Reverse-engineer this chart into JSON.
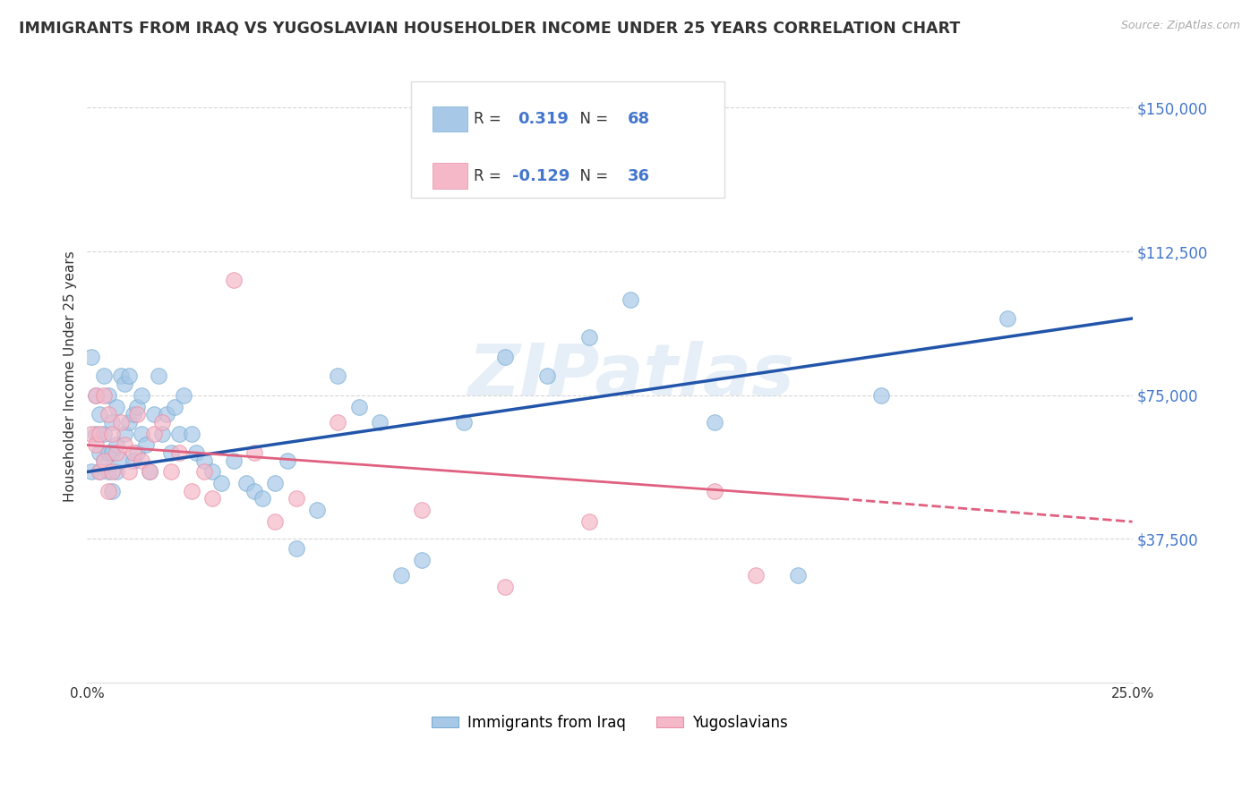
{
  "title": "IMMIGRANTS FROM IRAQ VS YUGOSLAVIAN HOUSEHOLDER INCOME UNDER 25 YEARS CORRELATION CHART",
  "source": "Source: ZipAtlas.com",
  "ylabel": "Householder Income Under 25 years",
  "xmin": 0.0,
  "xmax": 0.25,
  "ymin": 0,
  "ymax": 160000,
  "yticks": [
    37500,
    75000,
    112500,
    150000
  ],
  "ytick_labels": [
    "$37,500",
    "$75,000",
    "$112,500",
    "$150,000"
  ],
  "xticks": [
    0.0,
    0.05,
    0.1,
    0.15,
    0.2,
    0.25
  ],
  "xtick_labels": [
    "0.0%",
    "",
    "",
    "",
    "",
    "25.0%"
  ],
  "grid_color": "#cccccc",
  "background_color": "#ffffff",
  "iraq_color": "#a8c8e8",
  "iraq_edge_color": "#7aafd4",
  "iraq_line_color": "#2255aa",
  "yugoslavian_color": "#f5b8c8",
  "yugoslavian_edge_color": "#e890a8",
  "yugoslavian_line_color": "#e06080",
  "iraq_R": 0.319,
  "iraq_N": 68,
  "yugoslavian_R": -0.129,
  "yugoslavian_N": 36,
  "text_color_blue": "#4477cc",
  "text_color_dark": "#333333",
  "watermark": "ZIPatlas",
  "iraq_x": [
    0.001,
    0.001,
    0.002,
    0.002,
    0.003,
    0.003,
    0.003,
    0.004,
    0.004,
    0.004,
    0.005,
    0.005,
    0.005,
    0.006,
    0.006,
    0.006,
    0.007,
    0.007,
    0.007,
    0.008,
    0.008,
    0.009,
    0.009,
    0.01,
    0.01,
    0.011,
    0.011,
    0.012,
    0.012,
    0.013,
    0.013,
    0.014,
    0.015,
    0.016,
    0.017,
    0.018,
    0.019,
    0.02,
    0.021,
    0.022,
    0.023,
    0.025,
    0.026,
    0.028,
    0.03,
    0.032,
    0.035,
    0.038,
    0.04,
    0.042,
    0.045,
    0.048,
    0.05,
    0.055,
    0.06,
    0.065,
    0.07,
    0.075,
    0.08,
    0.09,
    0.1,
    0.11,
    0.12,
    0.13,
    0.15,
    0.17,
    0.19,
    0.22
  ],
  "iraq_y": [
    85000,
    55000,
    65000,
    75000,
    55000,
    60000,
    70000,
    58000,
    65000,
    80000,
    55000,
    60000,
    75000,
    50000,
    60000,
    68000,
    55000,
    62000,
    72000,
    58000,
    80000,
    65000,
    78000,
    68000,
    80000,
    58000,
    70000,
    60000,
    72000,
    65000,
    75000,
    62000,
    55000,
    70000,
    80000,
    65000,
    70000,
    60000,
    72000,
    65000,
    75000,
    65000,
    60000,
    58000,
    55000,
    52000,
    58000,
    52000,
    50000,
    48000,
    52000,
    58000,
    35000,
    45000,
    80000,
    72000,
    68000,
    28000,
    32000,
    68000,
    85000,
    80000,
    90000,
    100000,
    68000,
    28000,
    75000,
    95000
  ],
  "yugo_x": [
    0.001,
    0.002,
    0.002,
    0.003,
    0.003,
    0.004,
    0.004,
    0.005,
    0.005,
    0.006,
    0.006,
    0.007,
    0.008,
    0.009,
    0.01,
    0.011,
    0.012,
    0.013,
    0.015,
    0.016,
    0.018,
    0.02,
    0.022,
    0.025,
    0.028,
    0.03,
    0.035,
    0.04,
    0.045,
    0.05,
    0.06,
    0.08,
    0.1,
    0.12,
    0.15,
    0.16
  ],
  "yugo_y": [
    65000,
    62000,
    75000,
    55000,
    65000,
    58000,
    75000,
    50000,
    70000,
    55000,
    65000,
    60000,
    68000,
    62000,
    55000,
    60000,
    70000,
    58000,
    55000,
    65000,
    68000,
    55000,
    60000,
    50000,
    55000,
    48000,
    105000,
    60000,
    42000,
    48000,
    68000,
    45000,
    25000,
    42000,
    50000,
    28000
  ]
}
